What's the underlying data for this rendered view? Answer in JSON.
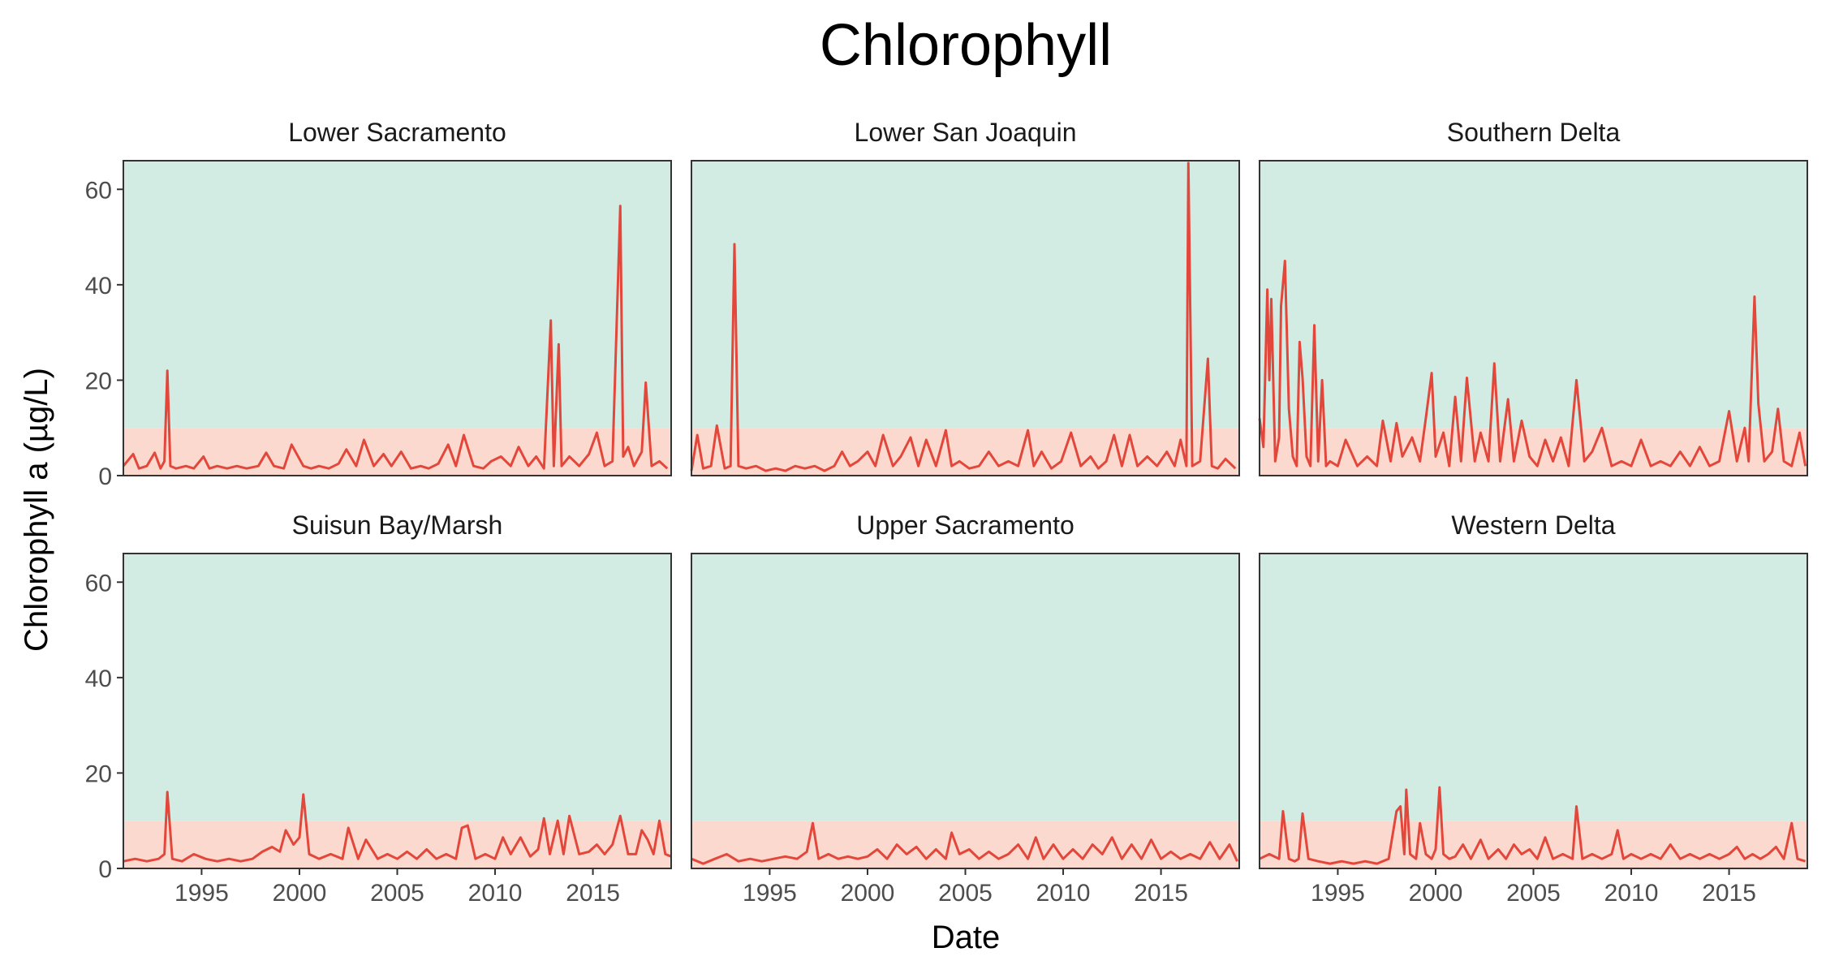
{
  "chart_data": {
    "type": "line",
    "title": "Chlorophyll",
    "xlabel": "Date",
    "ylabel": "Chlorophyll a (µg/L)",
    "xlim": [
      1991,
      2019
    ],
    "ylim": [
      0,
      66
    ],
    "xticks": [
      1995,
      2000,
      2005,
      2010,
      2015
    ],
    "yticks": [
      0,
      20,
      40,
      60
    ],
    "bands": [
      {
        "from": 0,
        "to": 10,
        "color": "#fcd9ce"
      },
      {
        "from": 10,
        "to": 66,
        "color": "#d2ece3"
      }
    ],
    "line_color": "#e3473b",
    "grid": false,
    "legend": "none",
    "facets": [
      {
        "name": "Lower Sacramento",
        "x": [
          1991.0,
          1991.5,
          1991.8,
          1992.2,
          1992.6,
          1992.9,
          1993.1,
          1993.25,
          1993.4,
          1993.7,
          1994.2,
          1994.6,
          1995.1,
          1995.4,
          1995.8,
          1996.3,
          1996.8,
          1997.3,
          1997.9,
          1998.3,
          1998.7,
          1999.2,
          1999.6,
          2000.2,
          2000.6,
          2001.0,
          2001.5,
          2002.0,
          2002.4,
          2002.9,
          2003.3,
          2003.8,
          2004.3,
          2004.7,
          2005.2,
          2005.7,
          2006.2,
          2006.6,
          2007.1,
          2007.6,
          2008.0,
          2008.4,
          2008.9,
          2009.4,
          2009.8,
          2010.3,
          2010.8,
          2011.2,
          2011.7,
          2012.1,
          2012.5,
          2012.85,
          2013.0,
          2013.25,
          2013.4,
          2013.8,
          2014.3,
          2014.8,
          2015.2,
          2015.6,
          2016.0,
          2016.4,
          2016.55,
          2016.8,
          2017.1,
          2017.5,
          2017.7,
          2018.0,
          2018.4,
          2018.8
        ],
        "y": [
          2,
          4.5,
          1.5,
          2,
          4.8,
          1.5,
          3,
          22,
          2,
          1.5,
          2,
          1.5,
          4,
          1.5,
          2,
          1.5,
          2,
          1.5,
          2,
          4.8,
          2,
          1.5,
          6.5,
          2,
          1.5,
          2,
          1.5,
          2.5,
          5.5,
          2,
          7.5,
          2,
          4.5,
          2,
          5,
          1.5,
          2,
          1.5,
          2.5,
          6.5,
          2,
          8.5,
          2,
          1.5,
          3,
          4,
          2,
          6,
          2,
          4,
          1.5,
          32.5,
          2,
          27.5,
          2,
          4,
          2,
          4.5,
          9,
          2,
          3,
          56.5,
          4,
          6,
          2,
          5,
          19.5,
          2,
          3,
          1.5
        ]
      },
      {
        "name": "Lower San Joaquin",
        "x": [
          1991.0,
          1991.3,
          1991.6,
          1992.0,
          1992.3,
          1992.7,
          1993.0,
          1993.2,
          1993.4,
          1993.8,
          1994.3,
          1994.8,
          1995.3,
          1995.8,
          1996.3,
          1996.8,
          1997.3,
          1997.8,
          1998.3,
          1998.7,
          1999.1,
          1999.5,
          2000.0,
          2000.4,
          2000.8,
          2001.3,
          2001.7,
          2002.2,
          2002.6,
          2003.0,
          2003.5,
          2004.0,
          2004.3,
          2004.7,
          2005.2,
          2005.7,
          2006.2,
          2006.7,
          2007.2,
          2007.7,
          2008.2,
          2008.5,
          2008.9,
          2009.4,
          2009.9,
          2010.4,
          2010.9,
          2011.4,
          2011.8,
          2012.2,
          2012.6,
          2013.0,
          2013.4,
          2013.8,
          2014.3,
          2014.8,
          2015.3,
          2015.7,
          2016.0,
          2016.3,
          2016.4,
          2016.6,
          2017.0,
          2017.4,
          2017.6,
          2017.9,
          2018.3,
          2018.8
        ],
        "y": [
          1,
          8.5,
          1.5,
          2,
          10.5,
          1.5,
          2,
          48.5,
          2,
          1.5,
          2,
          1,
          1.5,
          1,
          2,
          1.5,
          2,
          1,
          2,
          5,
          2,
          3,
          5,
          2,
          8.5,
          2,
          4,
          8,
          2,
          7.5,
          2,
          9.5,
          2,
          3,
          1.5,
          2,
          5,
          2,
          3,
          2,
          9.5,
          2,
          5,
          1.5,
          3,
          9,
          2,
          4,
          1.5,
          3,
          8.5,
          2,
          8.5,
          2,
          4,
          2,
          5,
          2,
          7.5,
          2,
          65.5,
          2,
          3,
          24.5,
          2,
          1.5,
          3.5,
          1.5
        ]
      },
      {
        "name": "Southern Delta",
        "x": [
          1991.0,
          1991.2,
          1991.4,
          1991.5,
          1991.6,
          1991.8,
          1992.0,
          1992.1,
          1992.3,
          1992.5,
          1992.7,
          1992.9,
          1993.05,
          1993.2,
          1993.4,
          1993.6,
          1993.8,
          1994.0,
          1994.2,
          1994.4,
          1994.6,
          1995.0,
          1995.4,
          1996.0,
          1996.5,
          1997.0,
          1997.3,
          1997.7,
          1998.0,
          1998.3,
          1998.8,
          1999.2,
          1999.5,
          1999.8,
          2000.0,
          2000.4,
          2000.7,
          2001.0,
          2001.3,
          2001.6,
          2002.0,
          2002.3,
          2002.7,
          2003.0,
          2003.3,
          2003.7,
          2004.0,
          2004.4,
          2004.8,
          2005.2,
          2005.6,
          2006.0,
          2006.4,
          2006.8,
          2007.2,
          2007.6,
          2008.0,
          2008.5,
          2009.0,
          2009.5,
          2010.0,
          2010.5,
          2011.0,
          2011.5,
          2012.0,
          2012.5,
          2013.0,
          2013.5,
          2014.0,
          2014.5,
          2015.0,
          2015.4,
          2015.8,
          2016.0,
          2016.3,
          2016.5,
          2016.8,
          2017.2,
          2017.5,
          2017.8,
          2018.2,
          2018.6,
          2018.9
        ],
        "y": [
          12,
          6,
          39,
          20,
          37,
          3,
          8,
          35.5,
          45,
          14,
          4,
          2,
          28,
          20.5,
          4,
          2,
          31.5,
          3,
          20,
          2,
          3,
          2,
          7.5,
          2,
          4,
          2,
          11.5,
          3,
          11,
          4,
          8,
          3,
          12,
          21.5,
          4,
          9,
          2,
          16.5,
          3,
          20.5,
          3,
          9,
          3,
          23.5,
          3,
          16,
          3,
          11.5,
          4,
          2,
          7.5,
          3,
          8,
          2,
          20,
          3,
          5,
          10,
          2,
          3,
          2,
          7.5,
          2,
          3,
          2,
          5,
          2,
          6,
          2,
          3,
          13.5,
          3,
          10,
          3,
          37.5,
          15,
          3,
          5,
          14,
          3,
          2,
          9,
          2
        ]
      },
      {
        "name": "Suisun Bay/Marsh",
        "x": [
          1991.0,
          1991.6,
          1992.2,
          1992.8,
          1993.1,
          1993.25,
          1993.5,
          1994.0,
          1994.6,
          1995.2,
          1995.8,
          1996.4,
          1997.0,
          1997.6,
          1998.1,
          1998.6,
          1999.0,
          1999.3,
          1999.7,
          2000.0,
          2000.2,
          2000.5,
          2001.0,
          2001.6,
          2002.2,
          2002.5,
          2003.0,
          2003.4,
          2004.0,
          2004.5,
          2005.0,
          2005.5,
          2006.0,
          2006.5,
          2007.0,
          2007.5,
          2008.0,
          2008.3,
          2008.6,
          2009.0,
          2009.5,
          2010.0,
          2010.4,
          2010.8,
          2011.3,
          2011.8,
          2012.2,
          2012.5,
          2012.8,
          2013.2,
          2013.5,
          2013.8,
          2014.3,
          2014.8,
          2015.2,
          2015.6,
          2016.0,
          2016.4,
          2016.8,
          2017.2,
          2017.5,
          2017.8,
          2018.1,
          2018.4,
          2018.7,
          2019.0
        ],
        "y": [
          1.5,
          2,
          1.5,
          2,
          3,
          16,
          2,
          1.5,
          3,
          2,
          1.5,
          2,
          1.5,
          2,
          3.5,
          4.5,
          3.5,
          8,
          5,
          6.5,
          15.5,
          3,
          2,
          3,
          2,
          8.5,
          2,
          6,
          2,
          3,
          2,
          3.5,
          2,
          4,
          2,
          3,
          2,
          8.5,
          9,
          2,
          3,
          2,
          6.5,
          3,
          6.5,
          2.5,
          4,
          10.5,
          3,
          10,
          3,
          11,
          3,
          3.5,
          5,
          3,
          5,
          11,
          3,
          3,
          8,
          6,
          3,
          10,
          3,
          2.5
        ]
      },
      {
        "name": "Upper Sacramento",
        "x": [
          1991.0,
          1991.6,
          1992.2,
          1992.8,
          1993.4,
          1994.0,
          1994.6,
          1995.2,
          1995.8,
          1996.4,
          1996.9,
          1997.2,
          1997.5,
          1998.0,
          1998.5,
          1999.0,
          1999.5,
          2000.0,
          2000.5,
          2001.0,
          2001.5,
          2002.0,
          2002.5,
          2003.0,
          2003.5,
          2004.0,
          2004.3,
          2004.7,
          2005.2,
          2005.7,
          2006.2,
          2006.7,
          2007.2,
          2007.7,
          2008.2,
          2008.6,
          2009.0,
          2009.5,
          2010.0,
          2010.5,
          2011.0,
          2011.5,
          2012.0,
          2012.5,
          2013.0,
          2013.5,
          2014.0,
          2014.5,
          2015.0,
          2015.5,
          2016.0,
          2016.5,
          2017.0,
          2017.5,
          2018.0,
          2018.5,
          2018.9
        ],
        "y": [
          2,
          1,
          2,
          3,
          1.5,
          2,
          1.5,
          2,
          2.5,
          2,
          3.5,
          9.5,
          2,
          3,
          2,
          2.5,
          2,
          2.5,
          4,
          2,
          5,
          3,
          4.5,
          2,
          4,
          2,
          7.5,
          3,
          4,
          2,
          3.5,
          2,
          3,
          5,
          2,
          6.5,
          2,
          5,
          2,
          4,
          2,
          5,
          3,
          6.5,
          2,
          5,
          2,
          6,
          2,
          3.5,
          2,
          3,
          2,
          5.5,
          2,
          5,
          1.5
        ]
      },
      {
        "name": "Western Delta",
        "x": [
          1991.0,
          1991.5,
          1992.0,
          1992.2,
          1992.5,
          1992.8,
          1993.0,
          1993.2,
          1993.5,
          1994.0,
          1994.6,
          1995.2,
          1995.8,
          1996.4,
          1997.0,
          1997.6,
          1998.0,
          1998.2,
          1998.4,
          1998.5,
          1998.7,
          1999.0,
          1999.2,
          1999.5,
          1999.8,
          2000.0,
          2000.2,
          2000.4,
          2000.7,
          2001.0,
          2001.4,
          2001.8,
          2002.3,
          2002.7,
          2003.2,
          2003.6,
          2004.0,
          2004.4,
          2004.8,
          2005.2,
          2005.6,
          2006.0,
          2006.5,
          2007.0,
          2007.2,
          2007.5,
          2008.0,
          2008.5,
          2009.0,
          2009.3,
          2009.6,
          2010.0,
          2010.5,
          2011.0,
          2011.5,
          2012.0,
          2012.5,
          2013.0,
          2013.5,
          2014.0,
          2014.5,
          2015.0,
          2015.4,
          2015.8,
          2016.2,
          2016.6,
          2017.0,
          2017.4,
          2017.8,
          2018.2,
          2018.5,
          2018.9
        ],
        "y": [
          2,
          3,
          2,
          12,
          2,
          1.5,
          2,
          11.5,
          2,
          1.5,
          1,
          1.5,
          1,
          1.5,
          1,
          2,
          12,
          13,
          3,
          16.5,
          3,
          2,
          9.5,
          3,
          2,
          4,
          17,
          3,
          2,
          2.5,
          5,
          2,
          6,
          2,
          4,
          2,
          5,
          3,
          4,
          2,
          6.5,
          2,
          3,
          2,
          13,
          2,
          3,
          2,
          3,
          8,
          2,
          3,
          2,
          3,
          2,
          5,
          2,
          3,
          2,
          3,
          2,
          3,
          4.5,
          2,
          3,
          2,
          3,
          4.5,
          2,
          9.5,
          2,
          1.5
        ]
      }
    ]
  }
}
